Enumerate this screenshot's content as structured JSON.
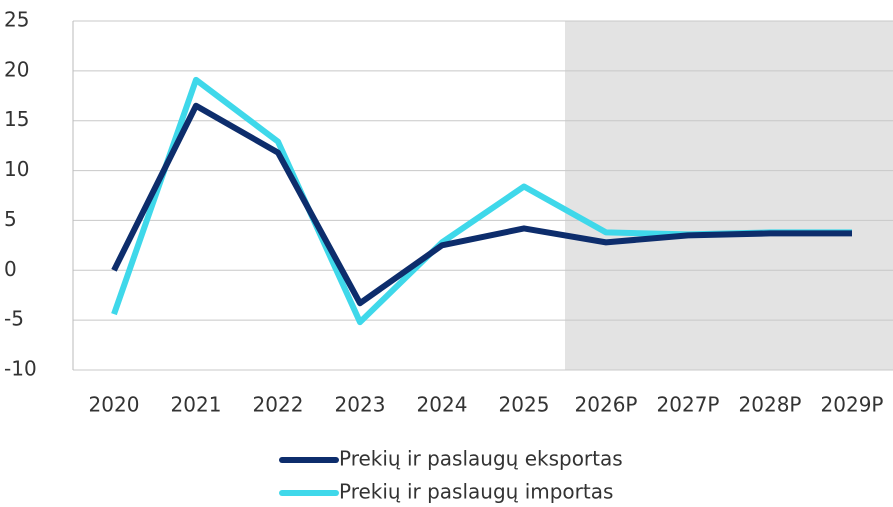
{
  "chart_data": {
    "type": "line",
    "categories": [
      "2020",
      "2021",
      "2022",
      "2023",
      "2024",
      "2025",
      "2026P",
      "2027P",
      "2028P",
      "2029P"
    ],
    "series": [
      {
        "name": "Prekių ir paslaugų eksportas",
        "color": "#0d2d6c",
        "values": [
          0,
          16.5,
          11.8,
          -3.3,
          2.5,
          4.2,
          2.8,
          3.5,
          3.7,
          3.7
        ]
      },
      {
        "name": "Prekių ir paslaugų importas",
        "color": "#3fd8ea",
        "values": [
          -4.4,
          19.1,
          12.9,
          -5.2,
          2.8,
          8.4,
          3.8,
          3.6,
          3.8,
          3.8
        ]
      }
    ],
    "ylim": [
      -10,
      25
    ],
    "yticks": [
      -10,
      -5,
      0,
      5,
      10,
      15,
      20,
      25
    ],
    "grid": true,
    "shade_from": "2026P",
    "shade_color": "#e3e3e3"
  }
}
